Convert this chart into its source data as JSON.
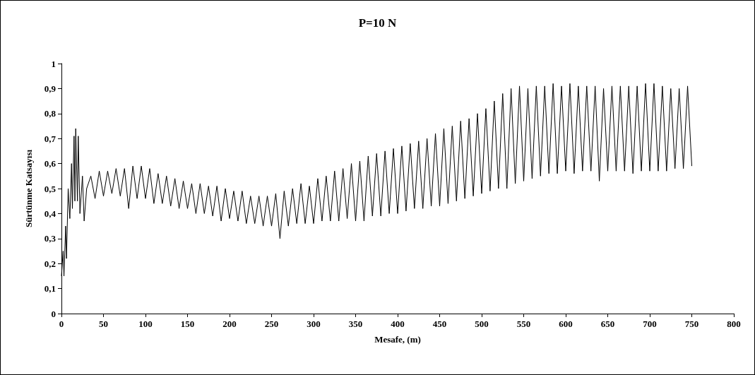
{
  "chart_data": {
    "type": "line",
    "title": "P=10 N",
    "xlabel": "Mesafe, (m)",
    "ylabel": "Sürtünme Katsayısı",
    "xlim": [
      0,
      800
    ],
    "xticks": [
      0,
      50,
      100,
      150,
      200,
      250,
      300,
      350,
      400,
      450,
      500,
      550,
      600,
      650,
      700,
      750,
      800
    ],
    "ylim": [
      0,
      1
    ],
    "yticks": [
      0,
      {
        "value": 0.1,
        "label": "0,1"
      },
      {
        "value": 0.2,
        "label": "0,2"
      },
      {
        "value": 0.3,
        "label": "0,3"
      },
      {
        "value": 0.4,
        "label": "0,4"
      },
      {
        "value": 0.5,
        "label": "0,5"
      },
      {
        "value": 0.6,
        "label": "0,6"
      },
      {
        "value": 0.7,
        "label": "0,7"
      },
      {
        "value": 0.8,
        "label": "0,8"
      },
      {
        "value": 0.9,
        "label": "0,9"
      },
      1
    ],
    "grid": false,
    "marker": "none",
    "line_style": "solid",
    "series": [
      {
        "color": "#000000",
        "x": [
          0,
          2,
          3,
          5,
          6,
          8,
          10,
          12,
          13,
          15,
          16,
          17,
          19,
          20,
          22,
          25,
          27,
          30,
          35,
          40,
          45,
          50,
          55,
          60,
          65,
          70,
          75,
          80,
          85,
          90,
          95,
          100,
          105,
          110,
          115,
          120,
          125,
          130,
          135,
          140,
          145,
          150,
          155,
          160,
          165,
          170,
          175,
          180,
          185,
          190,
          195,
          200,
          205,
          210,
          215,
          220,
          225,
          230,
          235,
          240,
          245,
          250,
          255,
          260,
          265,
          270,
          275,
          280,
          285,
          290,
          295,
          300,
          305,
          310,
          315,
          320,
          325,
          330,
          335,
          340,
          345,
          350,
          355,
          360,
          365,
          370,
          375,
          380,
          385,
          390,
          395,
          400,
          405,
          410,
          415,
          420,
          425,
          430,
          435,
          440,
          445,
          450,
          455,
          460,
          465,
          470,
          475,
          480,
          485,
          490,
          495,
          500,
          505,
          510,
          515,
          520,
          525,
          530,
          535,
          540,
          545,
          550,
          555,
          560,
          565,
          570,
          575,
          580,
          585,
          590,
          595,
          600,
          605,
          610,
          615,
          620,
          625,
          630,
          635,
          640,
          645,
          650,
          655,
          660,
          665,
          670,
          675,
          680,
          685,
          690,
          695,
          700,
          705,
          710,
          715,
          720,
          725,
          730,
          735,
          740,
          745,
          750
        ],
        "values": [
          0.15,
          0.25,
          0.15,
          0.35,
          0.22,
          0.5,
          0.38,
          0.6,
          0.42,
          0.71,
          0.45,
          0.74,
          0.45,
          0.71,
          0.4,
          0.55,
          0.37,
          0.5,
          0.55,
          0.46,
          0.57,
          0.47,
          0.57,
          0.48,
          0.58,
          0.47,
          0.58,
          0.42,
          0.59,
          0.46,
          0.59,
          0.46,
          0.58,
          0.44,
          0.56,
          0.44,
          0.55,
          0.43,
          0.54,
          0.42,
          0.53,
          0.42,
          0.52,
          0.4,
          0.52,
          0.4,
          0.51,
          0.39,
          0.51,
          0.37,
          0.5,
          0.38,
          0.49,
          0.37,
          0.49,
          0.36,
          0.47,
          0.36,
          0.47,
          0.35,
          0.47,
          0.35,
          0.48,
          0.3,
          0.49,
          0.35,
          0.5,
          0.36,
          0.52,
          0.36,
          0.51,
          0.36,
          0.54,
          0.37,
          0.55,
          0.37,
          0.57,
          0.37,
          0.58,
          0.38,
          0.6,
          0.37,
          0.61,
          0.37,
          0.63,
          0.39,
          0.64,
          0.39,
          0.65,
          0.4,
          0.66,
          0.4,
          0.67,
          0.41,
          0.68,
          0.42,
          0.69,
          0.42,
          0.7,
          0.43,
          0.72,
          0.43,
          0.74,
          0.44,
          0.75,
          0.45,
          0.77,
          0.46,
          0.78,
          0.47,
          0.8,
          0.48,
          0.82,
          0.49,
          0.85,
          0.5,
          0.88,
          0.5,
          0.9,
          0.52,
          0.91,
          0.53,
          0.9,
          0.54,
          0.91,
          0.55,
          0.91,
          0.56,
          0.92,
          0.56,
          0.91,
          0.57,
          0.92,
          0.56,
          0.91,
          0.57,
          0.91,
          0.57,
          0.91,
          0.53,
          0.9,
          0.57,
          0.91,
          0.57,
          0.91,
          0.57,
          0.91,
          0.56,
          0.91,
          0.57,
          0.92,
          0.57,
          0.92,
          0.57,
          0.91,
          0.57,
          0.9,
          0.58,
          0.9,
          0.58,
          0.91,
          0.59
        ]
      }
    ]
  }
}
